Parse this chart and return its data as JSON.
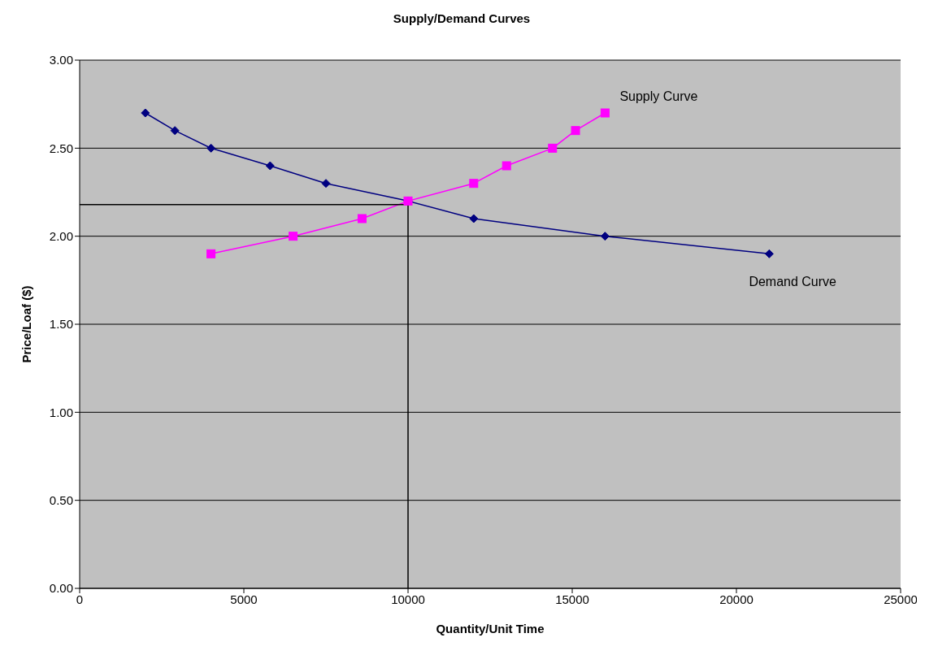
{
  "chart_data": {
    "type": "line",
    "title": "Supply/Demand Curves",
    "xlabel": "Quantity/Unit Time",
    "ylabel": "Price/Loaf ($)",
    "xlim": [
      0,
      25000
    ],
    "xticks": [
      0,
      5000,
      10000,
      15000,
      20000,
      25000
    ],
    "ylim": [
      0,
      3
    ],
    "yticks": [
      {
        "value": 0,
        "label": "0.00"
      },
      {
        "value": 0.5,
        "label": "0.50"
      },
      {
        "value": 1,
        "label": "1.00"
      },
      {
        "value": 1.5,
        "label": "1.50"
      },
      {
        "value": 2,
        "label": "2.00"
      },
      {
        "value": 2.5,
        "label": "2.50"
      },
      {
        "value": 3,
        "label": "3.00"
      }
    ],
    "grid": "y",
    "legend": false,
    "series": [
      {
        "name": "Demand Curve",
        "color": "#000080",
        "marker": "diamond",
        "x": [
          2000,
          2900,
          4000,
          5800,
          7500,
          10000,
          12000,
          16000,
          21000
        ],
        "values": [
          2.7,
          2.6,
          2.5,
          2.4,
          2.3,
          2.2,
          2.1,
          2.0,
          1.9
        ]
      },
      {
        "name": "Supply Curve",
        "color": "#ff00ff",
        "marker": "square",
        "x": [
          4000,
          6500,
          8600,
          10000,
          12000,
          13000,
          14400,
          15100,
          16000
        ],
        "values": [
          1.9,
          2.0,
          2.1,
          2.2,
          2.3,
          2.4,
          2.5,
          2.6,
          2.7
        ]
      },
      {
        "color": "#000000",
        "marker": "none",
        "x": [
          0,
          10000,
          10000
        ],
        "values": [
          2.18,
          2.18,
          0
        ]
      }
    ]
  }
}
